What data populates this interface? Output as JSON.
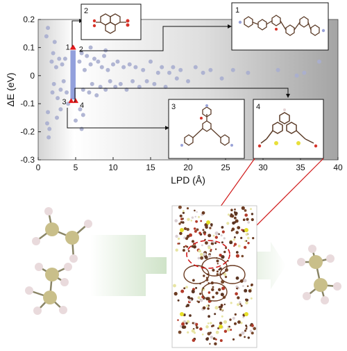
{
  "chart_data": {
    "type": "scatter",
    "xlabel": "LPD (Å)",
    "ylabel": "ΔE (eV)",
    "xlim": [
      0,
      40
    ],
    "ylim": [
      -0.3,
      0.2
    ],
    "xticks": [
      "0",
      "5",
      "10",
      "15",
      "20",
      "25",
      "30",
      "35",
      "40"
    ],
    "yticks": [
      "0.2",
      "0.1",
      "0",
      "-0.1",
      "-0.2",
      "-0.3"
    ],
    "point_color": "#a8aecf",
    "highlight_color": "#e31a1c",
    "band_color": "#7f8fd6",
    "highlight_band": {
      "x": [
        4.3,
        5.0
      ],
      "y": [
        -0.085,
        0.09
      ]
    },
    "highlighted_points": [
      {
        "label": "1",
        "x": 4.6,
        "y": 0.1
      },
      {
        "label": "2",
        "x": 4.7,
        "y": 0.1
      },
      {
        "label": "3",
        "x": 4.4,
        "y": -0.09
      },
      {
        "label": "4",
        "x": 5.0,
        "y": -0.09
      }
    ],
    "points": [
      [
        1.1,
        0.14
      ],
      [
        1.3,
        0.17
      ],
      [
        1.2,
        -0.17
      ],
      [
        1.4,
        -0.22
      ],
      [
        1.5,
        -0.19
      ],
      [
        1.3,
        -0.13
      ],
      [
        1.8,
        0.05
      ],
      [
        2.0,
        0.08
      ],
      [
        2.2,
        0.12
      ],
      [
        1.9,
        -0.06
      ],
      [
        2.1,
        -0.03
      ],
      [
        2.4,
        0.03
      ],
      [
        2.6,
        -0.08
      ],
      [
        2.8,
        0.06
      ],
      [
        3.0,
        -0.05
      ],
      [
        3.2,
        0.04
      ],
      [
        3.4,
        -0.02
      ],
      [
        3.6,
        0.06
      ],
      [
        3.8,
        -0.06
      ],
      [
        5.5,
        0.05
      ],
      [
        5.8,
        0.08
      ],
      [
        6.0,
        -0.05
      ],
      [
        6.2,
        0.02
      ],
      [
        6.5,
        0.07
      ],
      [
        6.8,
        -0.06
      ],
      [
        7.0,
        0.04
      ],
      [
        7.2,
        -0.03
      ],
      [
        7.5,
        0.06
      ],
      [
        7.8,
        -0.07
      ],
      [
        8.0,
        0.05
      ],
      [
        8.3,
        -0.04
      ],
      [
        8.5,
        0.03
      ],
      [
        8.8,
        0.07
      ],
      [
        9.0,
        -0.05
      ],
      [
        9.3,
        0.02
      ],
      [
        9.6,
        -0.02
      ],
      [
        10.0,
        0.04
      ],
      [
        10.3,
        -0.04
      ],
      [
        10.6,
        0.05
      ],
      [
        11.0,
        -0.03
      ],
      [
        11.4,
        0.03
      ],
      [
        11.8,
        -0.05
      ],
      [
        12.2,
        0.04
      ],
      [
        12.6,
        -0.02
      ],
      [
        13.0,
        0.03
      ],
      [
        13.5,
        -0.04
      ],
      [
        14.0,
        0.02
      ],
      [
        14.5,
        -0.02
      ],
      [
        15.0,
        0.05
      ],
      [
        15.5,
        -0.03
      ],
      [
        16.0,
        0.01
      ],
      [
        16.5,
        0.03
      ],
      [
        17.0,
        -0.04
      ],
      [
        17.5,
        0.01
      ],
      [
        18.0,
        0.03
      ],
      [
        18.5,
        -0.01
      ],
      [
        19.0,
        0.02
      ],
      [
        20.0,
        -0.02
      ],
      [
        21.0,
        0.03
      ],
      [
        22.0,
        0.01
      ],
      [
        23.0,
        0.02
      ],
      [
        24.5,
        -0.01
      ],
      [
        26.0,
        0.02
      ],
      [
        28.0,
        0.01
      ],
      [
        32.0,
        0.02
      ],
      [
        34.5,
        0.0
      ],
      [
        35.5,
        0.01
      ],
      [
        37.5,
        0.05
      ],
      [
        5.6,
        -0.12
      ],
      [
        6.0,
        -0.14
      ],
      [
        5.0,
        -0.16
      ],
      [
        5.8,
        -0.19
      ],
      [
        4.0,
        -0.1
      ],
      [
        3.0,
        -0.12
      ],
      [
        7.0,
        0.1
      ],
      [
        9.0,
        0.09
      ],
      [
        2.5,
        -0.15
      ]
    ],
    "structures": [
      {
        "label": "1"
      },
      {
        "label": "2"
      },
      {
        "label": "3"
      },
      {
        "label": "4"
      }
    ]
  }
}
